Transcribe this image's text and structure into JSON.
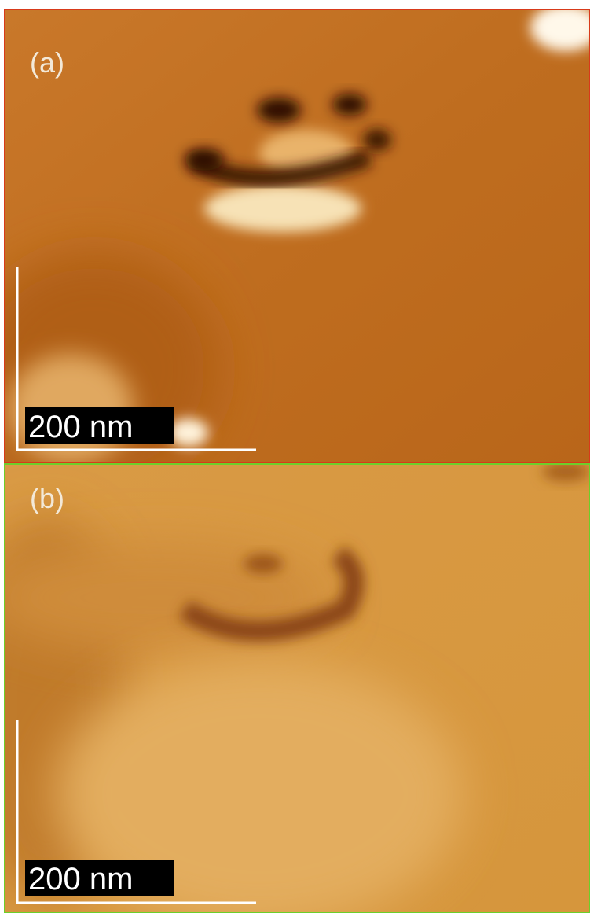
{
  "panels": [
    {
      "label": "(a)",
      "scale_bar": "200 nm"
    },
    {
      "label": "(b)",
      "scale_bar": "200 nm"
    }
  ]
}
